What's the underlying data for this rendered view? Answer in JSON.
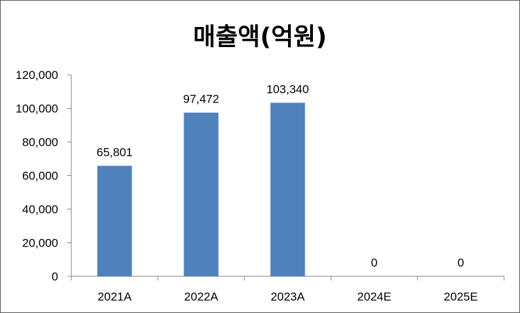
{
  "chart_data": {
    "type": "bar",
    "title": "매출액(억원)",
    "categories": [
      "2021A",
      "2022A",
      "2023A",
      "2024E",
      "2025E"
    ],
    "values": [
      65801,
      97472,
      103340,
      0,
      0
    ],
    "data_labels": [
      "65,801",
      "97,472",
      "103,340",
      "0",
      "0"
    ],
    "ylim": [
      0,
      120000
    ],
    "yticks": [
      0,
      20000,
      40000,
      60000,
      80000,
      100000,
      120000
    ],
    "ytick_labels": [
      "0",
      "20,000",
      "40,000",
      "60,000",
      "80,000",
      "100,000",
      "120,000"
    ],
    "xlabel": "",
    "ylabel": "",
    "grid": false,
    "legend": "none",
    "bar_color": "#4F81BD"
  }
}
